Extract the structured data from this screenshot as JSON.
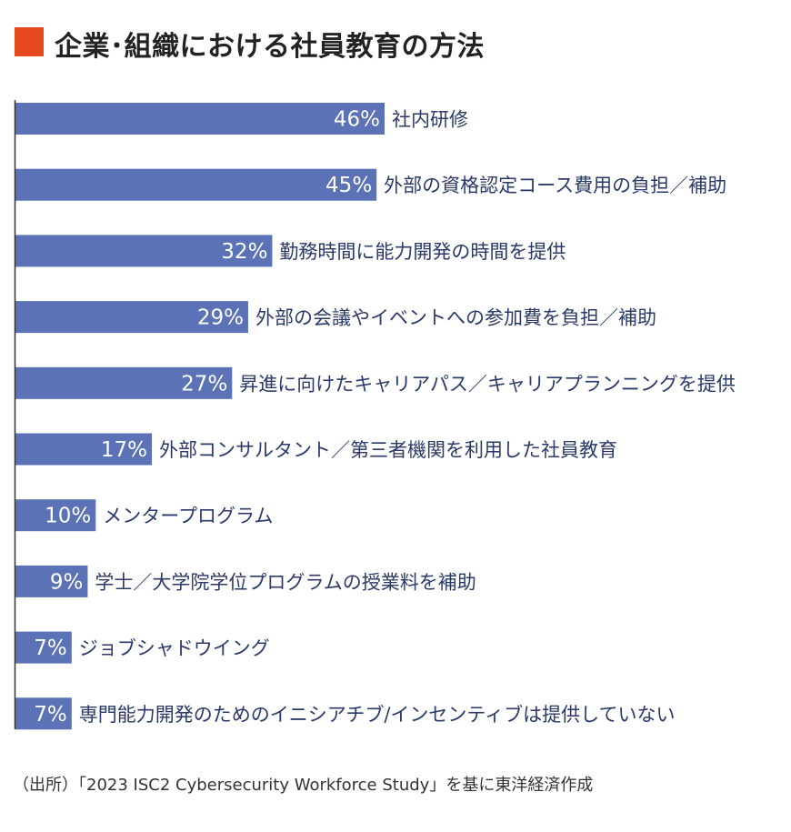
{
  "title": "企業･組織における社員教育の方法",
  "source": "（出所）「2023 ISC2 Cybersecurity Workforce Study」を基に東洋経済作成",
  "colors": {
    "bar": "#5b72b6",
    "accent": "#e8481e",
    "axis": "#333333",
    "label": "#2a3a6a",
    "value_text": "#ffffff"
  },
  "chart_data": {
    "type": "bar",
    "orientation": "horizontal",
    "title": "企業･組織における社員教育の方法",
    "xlim": [
      0,
      46
    ],
    "grid": false,
    "categories": [
      "社内研修",
      "外部の資格認定コース費用の負担／補助",
      "勤務時間に能力開発の時間を提供",
      "外部の会議やイベントへの参加費を負担／補助",
      "昇進に向けたキャリアパス／キャリアプランニングを提供",
      "外部コンサルタント／第三者機関を利用した社員教育",
      "メンタープログラム",
      "学士／大学院学位プログラムの授業料を補助",
      "ジョブシャドウイング",
      "専門能力開発のためのイニシアチブ/インセンティブは提供していない"
    ],
    "values": [
      46,
      45,
      32,
      29,
      27,
      17,
      10,
      9,
      7,
      7
    ],
    "value_labels": [
      "46%",
      "45%",
      "32%",
      "29%",
      "27%",
      "17%",
      "10%",
      "9%",
      "7%",
      "7%"
    ]
  }
}
